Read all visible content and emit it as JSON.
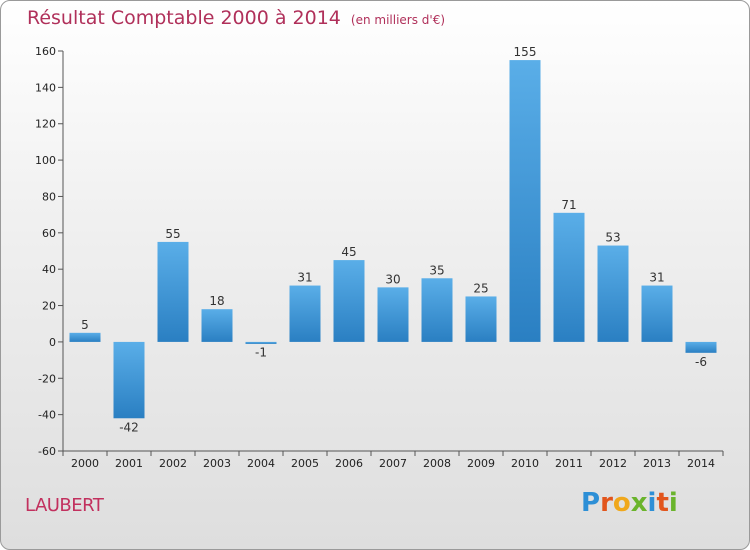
{
  "title": "Résultat Comptable 2000 à 2014",
  "unit": "(en milliers d'€)",
  "location": "LAUBERT",
  "logo": {
    "text": "Proxiti",
    "colors": [
      "#2d8fd6",
      "#e2551c",
      "#f0a81c",
      "#6ab42c",
      "#2d8fd6",
      "#e2551c",
      "#6ab42c"
    ]
  },
  "colors": {
    "bar_light": "#5aaee8",
    "bar_dark": "#2a7fc2",
    "axis": "#555555"
  },
  "chart_data": {
    "type": "bar",
    "categories": [
      "2000",
      "2001",
      "2002",
      "2003",
      "2004",
      "2005",
      "2006",
      "2007",
      "2008",
      "2009",
      "2010",
      "2011",
      "2012",
      "2013",
      "2014"
    ],
    "values": [
      5,
      -42,
      55,
      18,
      -1,
      31,
      45,
      30,
      35,
      25,
      155,
      71,
      53,
      31,
      -6
    ],
    "title": "Résultat Comptable 2000 à 2014",
    "xlabel": "",
    "ylabel": "",
    "ylim": [
      -60,
      160
    ],
    "yticks": [
      160,
      140,
      120,
      100,
      80,
      60,
      40,
      20,
      0,
      -20,
      -40,
      -60
    ],
    "grid": false,
    "legend": "none"
  }
}
